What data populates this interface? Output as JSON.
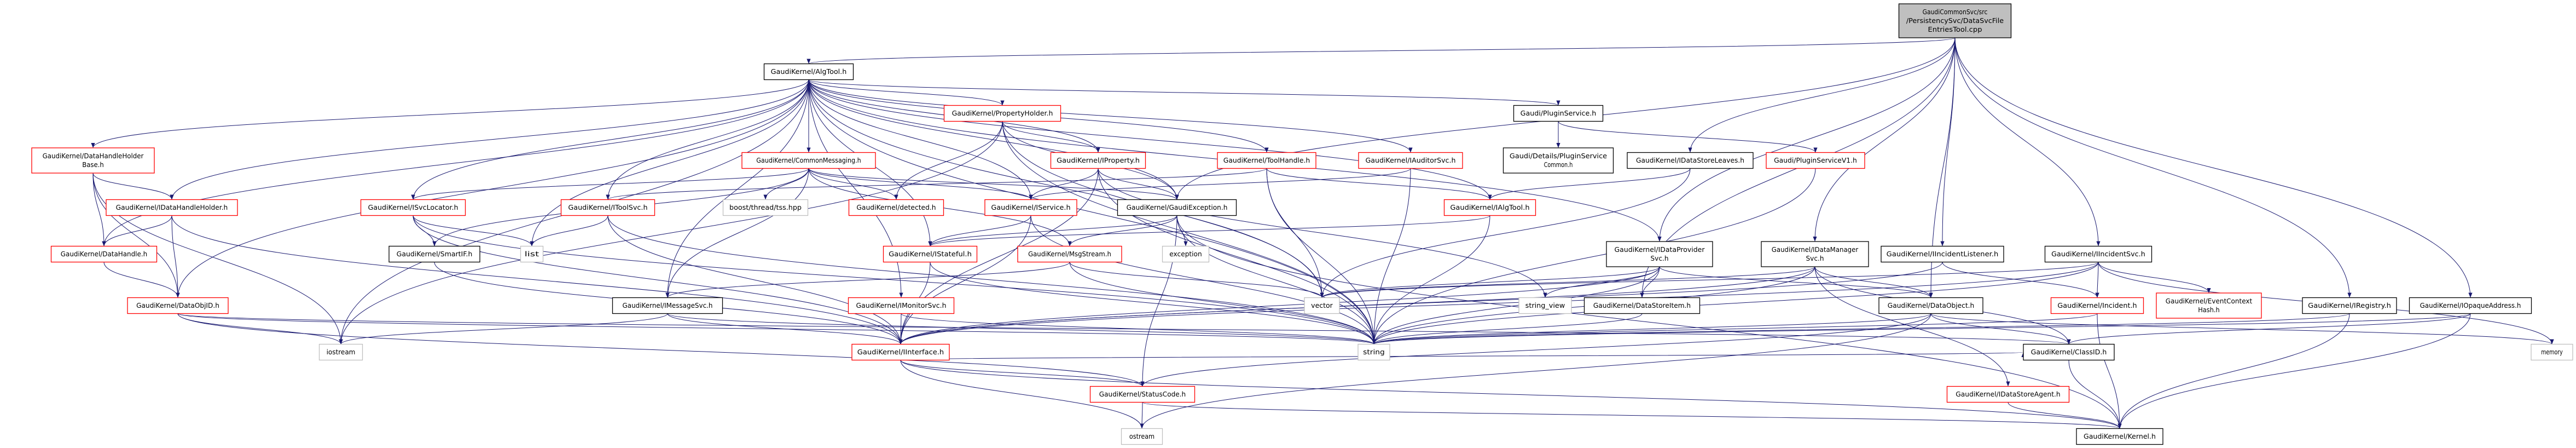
{
  "colors": {
    "edge": "#191970",
    "red_border": "#ff0000",
    "black_border": "#000000",
    "gray_border": "#bfbfbf",
    "root_fill": "#bfbfbf"
  },
  "nodes": [
    {
      "id": "root",
      "lines": [
        "GaudiCommonSvc/src",
        "/PersistencySvc/DataSvcFile",
        "EntriesTool.cpp"
      ],
      "style": "root"
    },
    {
      "id": "AlgTool",
      "lines": [
        "GaudiKernel/AlgTool.h"
      ],
      "style": "black"
    },
    {
      "id": "PropertyHolder",
      "lines": [
        "GaudiKernel/PropertyHolder.h"
      ],
      "style": "red"
    },
    {
      "id": "PluginService",
      "lines": [
        "Gaudi/PluginService.h"
      ],
      "style": "black"
    },
    {
      "id": "DataHandleHolderBase",
      "lines": [
        "GaudiKernel/DataHandleHolder",
        "Base.h"
      ],
      "style": "red"
    },
    {
      "id": "CommonMessaging",
      "lines": [
        "GaudiKernel/CommonMessaging.h"
      ],
      "style": "red"
    },
    {
      "id": "IProperty",
      "lines": [
        "GaudiKernel/IProperty.h"
      ],
      "style": "red"
    },
    {
      "id": "ToolHandle",
      "lines": [
        "GaudiKernel/ToolHandle.h"
      ],
      "style": "red"
    },
    {
      "id": "IAuditorSvc",
      "lines": [
        "GaudiKernel/IAuditorSvc.h"
      ],
      "style": "red"
    },
    {
      "id": "PluginServiceCommon",
      "lines": [
        "Gaudi/Details/PluginService",
        "Common.h"
      ],
      "style": "black"
    },
    {
      "id": "IDataStoreLeaves",
      "lines": [
        "GaudiKernel/IDataStoreLeaves.h"
      ],
      "style": "black"
    },
    {
      "id": "PluginServiceV1",
      "lines": [
        "Gaudi/PluginServiceV1.h"
      ],
      "style": "red"
    },
    {
      "id": "IDataHandleHolder",
      "lines": [
        "GaudiKernel/IDataHandleHolder.h"
      ],
      "style": "red"
    },
    {
      "id": "ISvcLocator",
      "lines": [
        "GaudiKernel/ISvcLocator.h"
      ],
      "style": "red"
    },
    {
      "id": "IToolSvc",
      "lines": [
        "GaudiKernel/IToolSvc.h"
      ],
      "style": "red"
    },
    {
      "id": "tss",
      "lines": [
        "boost/thread/tss.hpp"
      ],
      "style": "gray"
    },
    {
      "id": "detected",
      "lines": [
        "GaudiKernel/detected.h"
      ],
      "style": "red"
    },
    {
      "id": "IService",
      "lines": [
        "GaudiKernel/IService.h"
      ],
      "style": "red"
    },
    {
      "id": "GaudiException",
      "lines": [
        "GaudiKernel/GaudiException.h"
      ],
      "style": "black"
    },
    {
      "id": "IAlgTool",
      "lines": [
        "GaudiKernel/IAlgTool.h"
      ],
      "style": "red"
    },
    {
      "id": "DataHandle",
      "lines": [
        "GaudiKernel/DataHandle.h"
      ],
      "style": "red"
    },
    {
      "id": "SmartIF",
      "lines": [
        "GaudiKernel/SmartIF.h"
      ],
      "style": "black"
    },
    {
      "id": "list",
      "lines": [
        "list"
      ],
      "style": "gray"
    },
    {
      "id": "IStateful",
      "lines": [
        "GaudiKernel/IStateful.h"
      ],
      "style": "red"
    },
    {
      "id": "MsgStream",
      "lines": [
        "GaudiKernel/MsgStream.h"
      ],
      "style": "red"
    },
    {
      "id": "exception",
      "lines": [
        "exception"
      ],
      "style": "gray"
    },
    {
      "id": "IDataProviderSvc",
      "lines": [
        "GaudiKernel/IDataProvider",
        "Svc.h"
      ],
      "style": "black"
    },
    {
      "id": "IDataManagerSvc",
      "lines": [
        "GaudiKernel/IDataManager",
        "Svc.h"
      ],
      "style": "black"
    },
    {
      "id": "IIncidentListener",
      "lines": [
        "GaudiKernel/IIncidentListener.h"
      ],
      "style": "black"
    },
    {
      "id": "IIncidentSvc",
      "lines": [
        "GaudiKernel/IIncidentSvc.h"
      ],
      "style": "black"
    },
    {
      "id": "DataObjID",
      "lines": [
        "GaudiKernel/DataObjID.h"
      ],
      "style": "red"
    },
    {
      "id": "IMessageSvc",
      "lines": [
        "GaudiKernel/IMessageSvc.h"
      ],
      "style": "black"
    },
    {
      "id": "IMonitorSvc",
      "lines": [
        "GaudiKernel/IMonitorSvc.h"
      ],
      "style": "red"
    },
    {
      "id": "vector",
      "lines": [
        "vector"
      ],
      "style": "gray"
    },
    {
      "id": "string_view",
      "lines": [
        "string_view"
      ],
      "style": "gray"
    },
    {
      "id": "DataStoreItem",
      "lines": [
        "GaudiKernel/DataStoreItem.h"
      ],
      "style": "black"
    },
    {
      "id": "DataObject",
      "lines": [
        "GaudiKernel/DataObject.h"
      ],
      "style": "black"
    },
    {
      "id": "Incident",
      "lines": [
        "GaudiKernel/Incident.h"
      ],
      "style": "red"
    },
    {
      "id": "EventContextHash",
      "lines": [
        "GaudiKernel/EventContext",
        "Hash.h"
      ],
      "style": "red"
    },
    {
      "id": "IRegistry",
      "lines": [
        "GaudiKernel/IRegistry.h"
      ],
      "style": "black"
    },
    {
      "id": "IOpaqueAddress",
      "lines": [
        "GaudiKernel/IOpaqueAddress.h"
      ],
      "style": "black"
    },
    {
      "id": "iostream",
      "lines": [
        "iostream"
      ],
      "style": "gray"
    },
    {
      "id": "IInterface",
      "lines": [
        "GaudiKernel/IInterface.h"
      ],
      "style": "red"
    },
    {
      "id": "string",
      "lines": [
        "string"
      ],
      "style": "gray"
    },
    {
      "id": "ClassID",
      "lines": [
        "GaudiKernel/ClassID.h"
      ],
      "style": "black"
    },
    {
      "id": "memory",
      "lines": [
        "memory"
      ],
      "style": "gray"
    },
    {
      "id": "StatusCode",
      "lines": [
        "GaudiKernel/StatusCode.h"
      ],
      "style": "red"
    },
    {
      "id": "IDataStoreAgent",
      "lines": [
        "GaudiKernel/IDataStoreAgent.h"
      ],
      "style": "red"
    },
    {
      "id": "ostream",
      "lines": [
        "ostream"
      ],
      "style": "gray"
    },
    {
      "id": "Kernel",
      "lines": [
        "GaudiKernel/Kernel.h"
      ],
      "style": "black"
    }
  ],
  "edges": [
    [
      "root",
      "AlgTool"
    ],
    [
      "root",
      "IDataStoreLeaves"
    ],
    [
      "root",
      "IDataProviderSvc"
    ],
    [
      "root",
      "IDataManagerSvc"
    ],
    [
      "root",
      "IIncidentListener"
    ],
    [
      "root",
      "IIncidentSvc"
    ],
    [
      "root",
      "IRegistry"
    ],
    [
      "root",
      "IOpaqueAddress"
    ],
    [
      "root",
      "GaudiException"
    ],
    [
      "root",
      "DataObject"
    ],
    [
      "root",
      "DataStoreItem"
    ],
    [
      "AlgTool",
      "PropertyHolder"
    ],
    [
      "AlgTool",
      "PluginService"
    ],
    [
      "AlgTool",
      "DataHandleHolderBase"
    ],
    [
      "AlgTool",
      "CommonMessaging"
    ],
    [
      "AlgTool",
      "IProperty"
    ],
    [
      "AlgTool",
      "ToolHandle"
    ],
    [
      "AlgTool",
      "IAuditorSvc"
    ],
    [
      "AlgTool",
      "IDataHandleHolder"
    ],
    [
      "AlgTool",
      "ISvcLocator"
    ],
    [
      "AlgTool",
      "IToolSvc"
    ],
    [
      "AlgTool",
      "IService"
    ],
    [
      "AlgTool",
      "GaudiException"
    ],
    [
      "AlgTool",
      "IAlgTool"
    ],
    [
      "AlgTool",
      "DataHandle"
    ],
    [
      "AlgTool",
      "DataObjID"
    ],
    [
      "AlgTool",
      "IMonitorSvc"
    ],
    [
      "AlgTool",
      "IMessageSvc"
    ],
    [
      "AlgTool",
      "list"
    ],
    [
      "AlgTool",
      "vector"
    ],
    [
      "AlgTool",
      "string"
    ],
    [
      "AlgTool",
      "iostream"
    ],
    [
      "AlgTool",
      "IDataProviderSvc"
    ],
    [
      "AlgTool",
      "IStateful"
    ],
    [
      "PropertyHolder",
      "IProperty"
    ],
    [
      "PropertyHolder",
      "detected"
    ],
    [
      "PropertyHolder",
      "GaudiException"
    ],
    [
      "PropertyHolder",
      "iostream"
    ],
    [
      "PropertyHolder",
      "string"
    ],
    [
      "PropertyHolder",
      "vector"
    ],
    [
      "PluginService",
      "PluginServiceCommon"
    ],
    [
      "PluginService",
      "PluginServiceV1"
    ],
    [
      "DataHandleHolderBase",
      "IDataHandleHolder"
    ],
    [
      "DataHandleHolderBase",
      "DataHandle"
    ],
    [
      "DataHandleHolderBase",
      "DataObjID"
    ],
    [
      "DataHandleHolderBase",
      "iostream"
    ],
    [
      "CommonMessaging",
      "tss"
    ],
    [
      "CommonMessaging",
      "detected"
    ],
    [
      "CommonMessaging",
      "IService"
    ],
    [
      "CommonMessaging",
      "ISvcLocator"
    ],
    [
      "CommonMessaging",
      "SmartIF"
    ],
    [
      "CommonMessaging",
      "MsgStream"
    ],
    [
      "CommonMessaging",
      "IMessageSvc"
    ],
    [
      "CommonMessaging",
      "GaudiException"
    ],
    [
      "IProperty",
      "IInterface"
    ],
    [
      "IProperty",
      "GaudiException"
    ],
    [
      "IProperty",
      "string"
    ],
    [
      "IProperty",
      "string_view"
    ],
    [
      "IProperty",
      "IService"
    ],
    [
      "ToolHandle",
      "IAlgTool"
    ],
    [
      "ToolHandle",
      "IToolSvc"
    ],
    [
      "ToolHandle",
      "string"
    ],
    [
      "ToolHandle",
      "vector"
    ],
    [
      "IAuditorSvc",
      "IService"
    ],
    [
      "IAuditorSvc",
      "string"
    ],
    [
      "IDataStoreLeaves",
      "IAlgTool"
    ],
    [
      "IDataStoreLeaves",
      "vector"
    ],
    [
      "PluginServiceV1",
      "string"
    ],
    [
      "IDataHandleHolder",
      "DataHandle"
    ],
    [
      "IDataHandleHolder",
      "DataObjID"
    ],
    [
      "IDataHandleHolder",
      "IInterface"
    ],
    [
      "ISvcLocator",
      "SmartIF"
    ],
    [
      "ISvcLocator",
      "list"
    ],
    [
      "ISvcLocator",
      "IInterface"
    ],
    [
      "ISvcLocator",
      "string"
    ],
    [
      "IToolSvc",
      "list"
    ],
    [
      "IToolSvc",
      "IInterface"
    ],
    [
      "IToolSvc",
      "string"
    ],
    [
      "IService",
      "IStateful"
    ],
    [
      "IService",
      "IInterface"
    ],
    [
      "IService",
      "string"
    ],
    [
      "GaudiException",
      "exception"
    ],
    [
      "GaudiException",
      "StatusCode"
    ],
    [
      "GaudiException",
      "MsgStream"
    ],
    [
      "GaudiException",
      "IStateful"
    ],
    [
      "GaudiException",
      "string"
    ],
    [
      "GaudiException",
      "Kernel"
    ],
    [
      "IAlgTool",
      "IStateful"
    ],
    [
      "IAlgTool",
      "string"
    ],
    [
      "DataHandle",
      "DataObjID"
    ],
    [
      "SmartIF",
      "IInterface"
    ],
    [
      "IStateful",
      "IInterface"
    ],
    [
      "IStateful",
      "string"
    ],
    [
      "MsgStream",
      "IMessageSvc"
    ],
    [
      "MsgStream",
      "string"
    ],
    [
      "MsgStream",
      "vector"
    ],
    [
      "IDataProviderSvc",
      "DataStoreItem"
    ],
    [
      "IDataProviderSvc",
      "string_view"
    ],
    [
      "IDataProviderSvc",
      "vector"
    ],
    [
      "IDataProviderSvc",
      "string"
    ],
    [
      "IDataProviderSvc",
      "IInterface"
    ],
    [
      "IDataProviderSvc",
      "DataObject"
    ],
    [
      "IDataManagerSvc",
      "DataObject"
    ],
    [
      "IDataManagerSvc",
      "string"
    ],
    [
      "IDataManagerSvc",
      "vector"
    ],
    [
      "IDataManagerSvc",
      "IInterface"
    ],
    [
      "IDataManagerSvc",
      "ClassID"
    ],
    [
      "IDataManagerSvc",
      "IDataStoreAgent"
    ],
    [
      "IIncidentListener",
      "Incident"
    ],
    [
      "IIncidentListener",
      "IInterface"
    ],
    [
      "IIncidentSvc",
      "Incident"
    ],
    [
      "IIncidentSvc",
      "EventContextHash"
    ],
    [
      "IIncidentSvc",
      "memory"
    ],
    [
      "IIncidentSvc",
      "string"
    ],
    [
      "IIncidentSvc",
      "vector"
    ],
    [
      "IIncidentSvc",
      "IInterface"
    ],
    [
      "DataObjID",
      "iostream"
    ],
    [
      "DataObjID",
      "string"
    ],
    [
      "DataObjID",
      "ClassID"
    ],
    [
      "DataObjID",
      "StatusCode"
    ],
    [
      "IMessageSvc",
      "IInterface"
    ],
    [
      "IMessageSvc",
      "iostream"
    ],
    [
      "IMessageSvc",
      "string"
    ],
    [
      "IMonitorSvc",
      "IInterface"
    ],
    [
      "IMonitorSvc",
      "string"
    ],
    [
      "DataStoreItem",
      "string"
    ],
    [
      "DataObject",
      "ClassID"
    ],
    [
      "DataObject",
      "StatusCode"
    ],
    [
      "DataObject",
      "string"
    ],
    [
      "DataObject",
      "memory"
    ],
    [
      "DataObject",
      "ostream"
    ],
    [
      "Incident",
      "Kernel"
    ],
    [
      "Incident",
      "string"
    ],
    [
      "IRegistry",
      "Kernel"
    ],
    [
      "IRegistry",
      "string"
    ],
    [
      "IOpaqueAddress",
      "Kernel"
    ],
    [
      "IOpaqueAddress",
      "ClassID"
    ],
    [
      "IOpaqueAddress",
      "string"
    ],
    [
      "IInterface",
      "StatusCode"
    ],
    [
      "IInterface",
      "ostream"
    ],
    [
      "IInterface",
      "Kernel"
    ],
    [
      "IInterface",
      "ClassID"
    ],
    [
      "ClassID",
      "Kernel"
    ],
    [
      "StatusCode",
      "ostream"
    ],
    [
      "StatusCode",
      "Kernel"
    ],
    [
      "IDataStoreAgent",
      "Kernel"
    ]
  ]
}
